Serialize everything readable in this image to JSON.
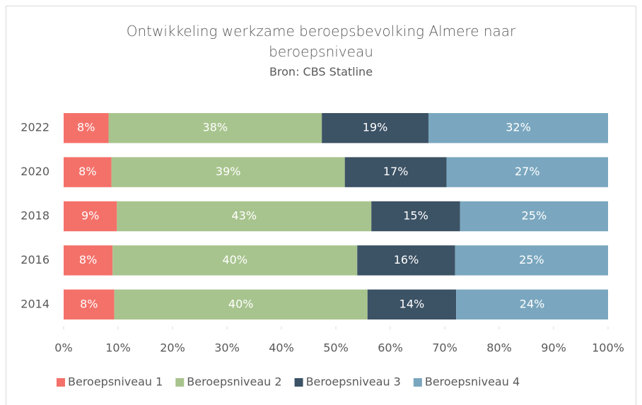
{
  "chart_data": {
    "type": "bar",
    "orientation": "horizontal",
    "stack": "percent",
    "title": "Ontwikkeling werkzame beroepsbevolking Almere naar beroepsniveau",
    "subtitle": "Bron: CBS Statline",
    "categories": [
      "2022",
      "2020",
      "2018",
      "2016",
      "2014"
    ],
    "series": [
      {
        "name": "Beroepsniveau 1",
        "color": "#f4716a",
        "values": [
          8,
          8,
          9,
          8,
          8
        ],
        "value_labels": [
          "8%",
          "8%",
          "9%",
          "8%",
          "8%"
        ]
      },
      {
        "name": "Beroepsniveau 2",
        "color": "#a8c48e",
        "values": [
          38,
          39,
          43,
          40,
          40
        ],
        "value_labels": [
          "38%",
          "39%",
          "43%",
          "40%",
          "40%"
        ]
      },
      {
        "name": "Beroepsniveau 3",
        "color": "#3c5265",
        "values": [
          19,
          17,
          15,
          16,
          14
        ],
        "value_labels": [
          "19%",
          "17%",
          "15%",
          "16%",
          "14%"
        ]
      },
      {
        "name": "Beroepsniveau 4",
        "color": "#7aa7bf",
        "values": [
          32,
          27,
          25,
          25,
          24
        ],
        "value_labels": [
          "32%",
          "27%",
          "25%",
          "25%",
          "24%"
        ]
      }
    ],
    "xlim": [
      0,
      100
    ],
    "xticks": [
      {
        "value": 0,
        "label": "0%"
      },
      {
        "value": 10,
        "label": "10%"
      },
      {
        "value": 20,
        "label": "20%"
      },
      {
        "value": 30,
        "label": "30%"
      },
      {
        "value": 40,
        "label": "40%"
      },
      {
        "value": 50,
        "label": "50%"
      },
      {
        "value": 60,
        "label": "60%"
      },
      {
        "value": 70,
        "label": "70%"
      },
      {
        "value": 80,
        "label": "80%"
      },
      {
        "value": 90,
        "label": "90%"
      },
      {
        "value": 100,
        "label": "100%"
      }
    ],
    "grid": false,
    "legend": "bottom"
  }
}
